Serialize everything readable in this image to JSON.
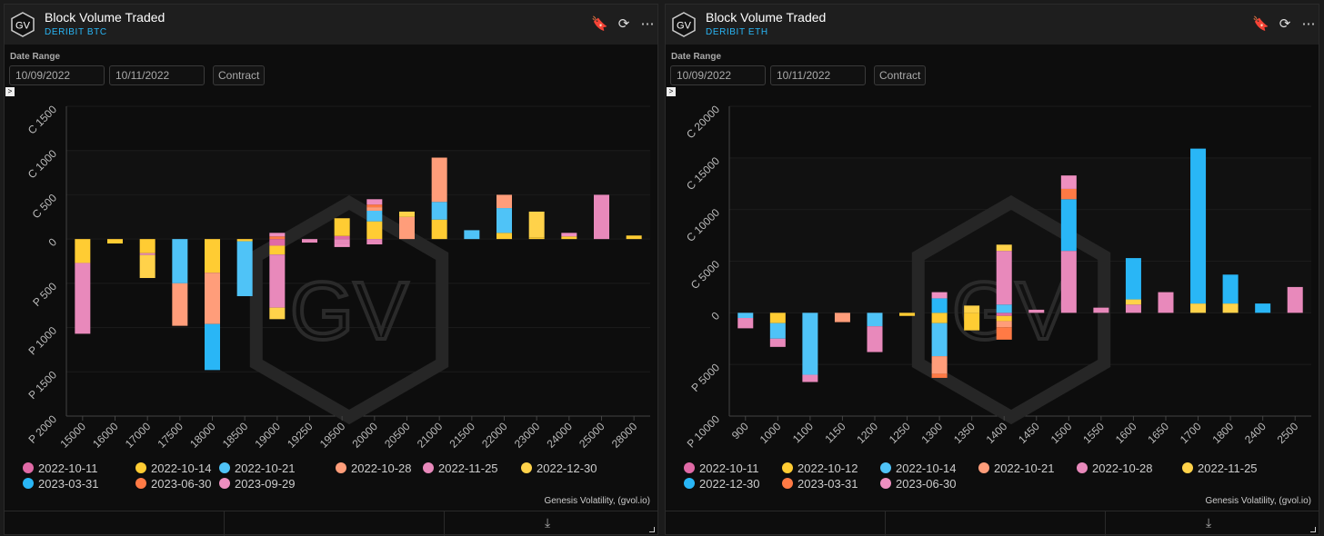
{
  "panels": [
    {
      "title": "Block Volume Traded",
      "subtitle": "DERIBIT BTC",
      "logo_text": "GV",
      "date_range_label": "Date Range",
      "date_from": "10/09/2022",
      "date_to": "10/11/2022",
      "contract_label": "Contract",
      "credit": "Genesis Volatility, (gvol.io)",
      "icons": [
        "bookmark-icon",
        "refresh-icon",
        "more-icon",
        "download-icon",
        "expand-icon"
      ],
      "expander_glyph": ">",
      "bookmark_glyph": "🔖",
      "refresh_glyph": "⟳",
      "more_glyph": "⋯",
      "download_glyph": "⤓"
    },
    {
      "title": "Block Volume Traded",
      "subtitle": "DERIBIT ETH",
      "logo_text": "GV",
      "date_range_label": "Date Range",
      "date_from": "10/09/2022",
      "date_to": "10/11/2022",
      "contract_label": "Contract",
      "credit": "Genesis Volatility, (gvol.io)",
      "icons": [
        "bookmark-icon",
        "refresh-icon",
        "more-icon",
        "download-icon",
        "expand-icon"
      ],
      "expander_glyph": ">",
      "bookmark_glyph": "🔖",
      "refresh_glyph": "⟳",
      "more_glyph": "⋯",
      "download_glyph": "⤓"
    }
  ],
  "chart_data": [
    {
      "type": "bar",
      "stacked": true,
      "watermark": "GV",
      "categories": [
        "15000",
        "16000",
        "17000",
        "17500",
        "18000",
        "18500",
        "19000",
        "19250",
        "19500",
        "20000",
        "20500",
        "21000",
        "21500",
        "22000",
        "23000",
        "24000",
        "25000",
        "28000"
      ],
      "y_tick_labels": [
        "C 1500",
        "C 1000",
        "C 500",
        "0",
        "P 500",
        "P 1000",
        "P 1500",
        "P 2000"
      ],
      "y_tick_values": [
        1500,
        1000,
        500,
        0,
        -500,
        -1000,
        -1500,
        -2000
      ],
      "ylim": [
        -2000,
        1500
      ],
      "series": [
        {
          "name": "2022-10-11",
          "color": "#e06aa6",
          "values": [
            0,
            0,
            0,
            0,
            0,
            0,
            -75,
            0,
            35,
            0,
            0,
            0,
            0,
            0,
            0,
            0,
            0,
            0
          ]
        },
        {
          "name": "2022-10-14",
          "color": "#ffcc33",
          "values": [
            -270,
            -50,
            -160,
            0,
            -380,
            -25,
            -100,
            0,
            200,
            200,
            0,
            220,
            0,
            70,
            20,
            30,
            0,
            40
          ]
        },
        {
          "name": "2022-10-21",
          "color": "#4fc3f7",
          "values": [
            0,
            0,
            0,
            -500,
            0,
            -620,
            0,
            0,
            0,
            120,
            0,
            200,
            100,
            280,
            0,
            0,
            0,
            0
          ]
        },
        {
          "name": "2022-10-28",
          "color": "#ff9d7a",
          "values": [
            0,
            0,
            0,
            -480,
            -580,
            0,
            0,
            0,
            0,
            40,
            250,
            500,
            0,
            150,
            0,
            0,
            0,
            0
          ]
        },
        {
          "name": "2022-11-25",
          "color": "#e889bb",
          "values": [
            -800,
            0,
            -20,
            0,
            0,
            0,
            -600,
            -40,
            -60,
            -60,
            0,
            0,
            0,
            0,
            0,
            0,
            500,
            0
          ]
        },
        {
          "name": "2022-12-30",
          "color": "#ffd24a",
          "values": [
            0,
            0,
            -260,
            0,
            0,
            0,
            -130,
            0,
            0,
            0,
            60,
            0,
            0,
            0,
            290,
            0,
            0,
            0
          ]
        },
        {
          "name": "2023-03-31",
          "color": "#29b6f6",
          "values": [
            0,
            0,
            0,
            0,
            -520,
            0,
            0,
            0,
            0,
            0,
            0,
            0,
            0,
            0,
            0,
            0,
            0,
            0
          ]
        },
        {
          "name": "2023-06-30",
          "color": "#ff7a45",
          "values": [
            0,
            0,
            0,
            0,
            0,
            0,
            30,
            0,
            0,
            30,
            0,
            0,
            0,
            0,
            0,
            0,
            0,
            0
          ]
        },
        {
          "name": "2023-09-29",
          "color": "#ee8fc0",
          "values": [
            0,
            0,
            0,
            0,
            0,
            0,
            40,
            0,
            -30,
            60,
            0,
            0,
            0,
            0,
            0,
            40,
            0,
            0
          ]
        }
      ]
    },
    {
      "type": "bar",
      "stacked": true,
      "watermark": "GV",
      "categories": [
        "900",
        "1000",
        "1100",
        "1150",
        "1200",
        "1250",
        "1300",
        "1350",
        "1400",
        "1450",
        "1500",
        "1550",
        "1600",
        "1650",
        "1700",
        "1800",
        "2400",
        "2500"
      ],
      "y_tick_labels": [
        "C 20000",
        "C 15000",
        "C 10000",
        "C 5000",
        "0",
        "P 5000",
        "P 10000"
      ],
      "y_tick_values": [
        20000,
        15000,
        10000,
        5000,
        0,
        -5000,
        -10000
      ],
      "ylim": [
        -10000,
        20000
      ],
      "series": [
        {
          "name": "2022-10-11",
          "color": "#e06aa6",
          "values": [
            0,
            0,
            0,
            0,
            0,
            0,
            0,
            0,
            -300,
            0,
            0,
            0,
            0,
            0,
            0,
            0,
            0,
            0
          ]
        },
        {
          "name": "2022-10-12",
          "color": "#ffcc33",
          "values": [
            0,
            -1000,
            0,
            0,
            0,
            -300,
            -1000,
            -1700,
            -500,
            0,
            0,
            0,
            0,
            0,
            0,
            0,
            0,
            0
          ]
        },
        {
          "name": "2022-10-14",
          "color": "#4fc3f7",
          "values": [
            -500,
            -1500,
            -6000,
            0,
            -1300,
            0,
            -3200,
            0,
            800,
            0,
            0,
            0,
            0,
            0,
            0,
            0,
            0,
            0
          ]
        },
        {
          "name": "2022-10-21",
          "color": "#ff9d7a",
          "values": [
            0,
            0,
            0,
            -900,
            0,
            0,
            -1700,
            0,
            -600,
            0,
            0,
            0,
            0,
            0,
            0,
            0,
            0,
            0
          ]
        },
        {
          "name": "2022-10-28",
          "color": "#e889bb",
          "values": [
            -1000,
            -800,
            -700,
            0,
            -2500,
            0,
            0,
            0,
            5200,
            300,
            6000,
            500,
            800,
            2000,
            0,
            0,
            0,
            2500
          ]
        },
        {
          "name": "2022-11-25",
          "color": "#ffd24a",
          "values": [
            0,
            0,
            0,
            0,
            0,
            0,
            0,
            700,
            600,
            0,
            0,
            0,
            500,
            0,
            900,
            900,
            0,
            0
          ]
        },
        {
          "name": "2022-12-30",
          "color": "#29b6f6",
          "values": [
            0,
            0,
            0,
            0,
            0,
            0,
            1400,
            0,
            0,
            0,
            5000,
            0,
            4000,
            0,
            15000,
            2800,
            900,
            0
          ]
        },
        {
          "name": "2023-03-31",
          "color": "#ff7a45",
          "values": [
            0,
            0,
            0,
            0,
            0,
            0,
            -400,
            0,
            -1200,
            0,
            1000,
            0,
            0,
            0,
            0,
            0,
            0,
            0
          ]
        },
        {
          "name": "2023-06-30",
          "color": "#ee8fc0",
          "values": [
            0,
            0,
            0,
            0,
            0,
            0,
            600,
            0,
            0,
            0,
            1300,
            0,
            0,
            0,
            0,
            0,
            0,
            0
          ]
        }
      ]
    }
  ]
}
